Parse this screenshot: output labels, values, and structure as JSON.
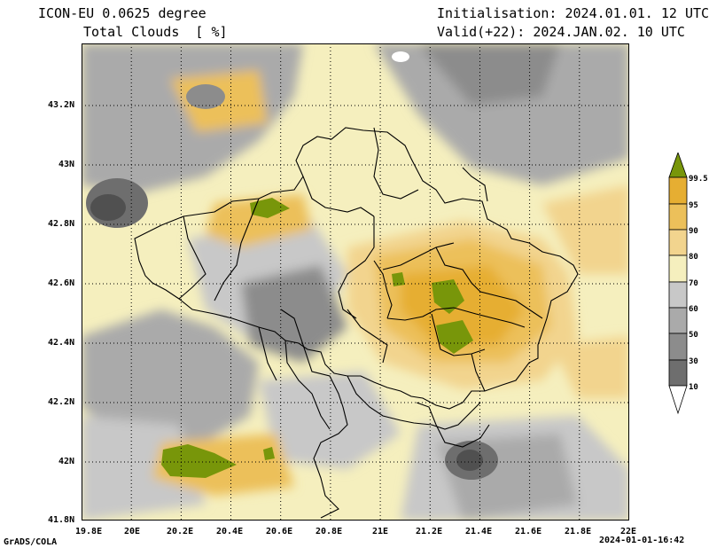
{
  "header": {
    "model": "ICON-EU 0.0625 degree",
    "variable": "Total Clouds  [ %]",
    "init": "Initialisation: 2024.01.01. 12 UTC",
    "valid": "Valid(+22): 2024.JAN.02. 10 UTC"
  },
  "footer": {
    "credit": "GrADS/COLA",
    "timestamp": "2024-01-01-16:42"
  },
  "map": {
    "lat_labels": [
      "43.2N",
      "43N",
      "42.8N",
      "42.6N",
      "42.4N",
      "42.2N",
      "42N",
      "41.8N"
    ],
    "lon_labels": [
      "19.8E",
      "20E",
      "20.2E",
      "20.4E",
      "20.6E",
      "20.8E",
      "21E",
      "21.2E",
      "21.4E",
      "21.6E",
      "21.8E",
      "22E"
    ]
  },
  "colorbar": {
    "levels": [
      "99.5",
      "95",
      "90",
      "80",
      "70",
      "60",
      "50",
      "30",
      "10"
    ],
    "colors": [
      "#78960a",
      "#e6ae32",
      "#ecc05a",
      "#f2d48e",
      "#f5efbe",
      "#c8c8c8",
      "#aaaaaa",
      "#8c8c8c",
      "#6e6e6e",
      "#505050"
    ]
  },
  "palette": {
    "cover_100": "#78960a",
    "cover_95": "#e6ae32",
    "cover_90": "#ecc05a",
    "cover_80": "#f2d48e",
    "cover_70": "#f5efbe",
    "cover_60": "#c8c8c8",
    "cover_50": "#aaaaaa",
    "cover_30": "#8c8c8c",
    "cover_10": "#6e6e6e",
    "cover_0": "#505050"
  }
}
